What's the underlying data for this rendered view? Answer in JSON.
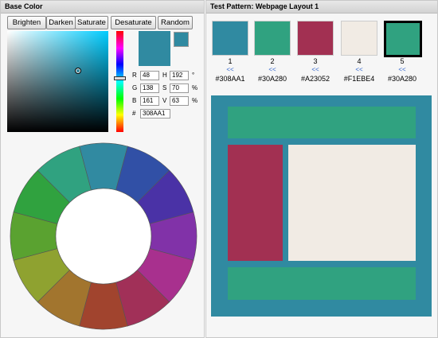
{
  "left_panel": {
    "title": "Base Color",
    "buttons": [
      "Brighten",
      "Darken",
      "Saturate",
      "Desaturate",
      "Random"
    ],
    "rows": [
      {
        "label1": "R",
        "value1": 48,
        "label2": "H",
        "value2": 192,
        "unit": "°"
      },
      {
        "label1": "G",
        "value1": 138,
        "label2": "S",
        "value2": 70,
        "unit": "%"
      },
      {
        "label1": "B",
        "value1": 161,
        "label2": "V",
        "value2": 63,
        "unit": "%"
      }
    ],
    "hex_row": {
      "label": "#",
      "value": "308AA1"
    }
  },
  "right_panel": {
    "title": "Test Pattern: Webpage Layout 1",
    "swatches": [
      {
        "number": 1,
        "link": "<<",
        "hex": "#308AA1"
      },
      {
        "number": 2,
        "link": "<<",
        "hex": "#30A280"
      },
      {
        "number": 3,
        "link": "<<",
        "hex": "#A23052"
      },
      {
        "number": 4,
        "link": "<<",
        "hex": "#F1EBE4"
      },
      {
        "number": 5,
        "link": "<<",
        "hex": "#30A280",
        "selected": true
      }
    ]
  }
}
